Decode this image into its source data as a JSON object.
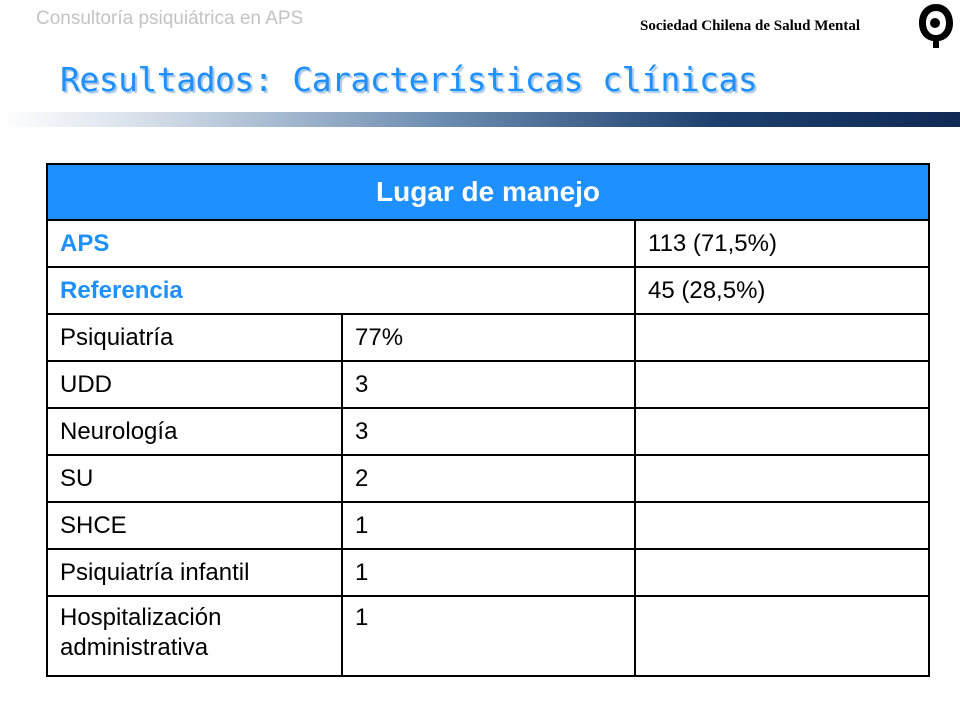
{
  "header": {
    "caption": "Consultoría psiquiátrica en APS",
    "society": "Sociedad Chilena de Salud Mental",
    "title": "Resultados: Características clínicas"
  },
  "table": {
    "heading": "Lugar de manejo",
    "summary_rows": [
      {
        "label": "APS",
        "value": "113 (71,5%)"
      },
      {
        "label": "Referencia",
        "value": "45 (28,5%)"
      }
    ],
    "detail_rows": [
      {
        "label": "Psiquiatría",
        "value": "77%"
      },
      {
        "label": "UDD",
        "value": "3"
      },
      {
        "label": "Neurología",
        "value": "3"
      },
      {
        "label": "SU",
        "value": "2"
      },
      {
        "label": "SHCE",
        "value": "1"
      },
      {
        "label": "Psiquiatría infantil",
        "value": "1"
      },
      {
        "label": "Hospitalización administrativa",
        "value": "1"
      }
    ]
  }
}
